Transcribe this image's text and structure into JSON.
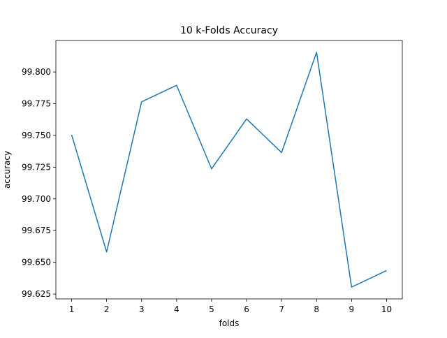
{
  "chart_data": {
    "type": "line",
    "title": "10 k-Folds Accuracy",
    "xlabel": "folds",
    "ylabel": "accuracy",
    "x": [
      1,
      2,
      3,
      4,
      5,
      6,
      7,
      8,
      9,
      10
    ],
    "series": [
      {
        "values": [
          99.7505,
          99.6582,
          99.7765,
          99.7895,
          99.7237,
          99.763,
          99.7365,
          99.8155,
          99.6305,
          99.6435
        ],
        "color": "#1f77b4"
      }
    ],
    "xticks": [
      "1",
      "2",
      "3",
      "4",
      "5",
      "6",
      "7",
      "8",
      "9",
      "10"
    ],
    "yticks": [
      {
        "value": 99.625,
        "label": "99.625"
      },
      {
        "value": 99.65,
        "label": "99.650"
      },
      {
        "value": 99.675,
        "label": "99.675"
      },
      {
        "value": 99.7,
        "label": "99.700"
      },
      {
        "value": 99.725,
        "label": "99.725"
      },
      {
        "value": 99.75,
        "label": "99.750"
      },
      {
        "value": 99.775,
        "label": "99.775"
      },
      {
        "value": 99.8,
        "label": "99.800"
      }
    ],
    "xlim": [
      0.55,
      10.45
    ],
    "ylim": [
      99.6212,
      99.8248
    ],
    "grid": false,
    "legend": "none"
  }
}
